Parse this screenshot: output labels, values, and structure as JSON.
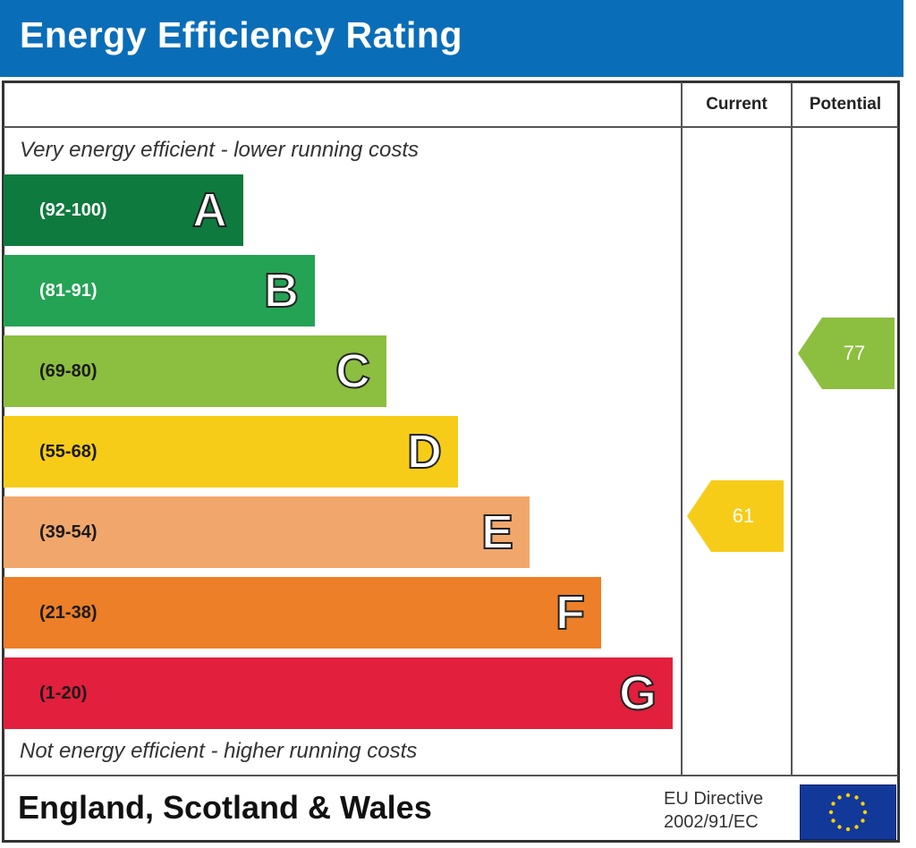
{
  "header": {
    "title": "Energy Efficiency Rating"
  },
  "columns": {
    "current": "Current",
    "potential": "Potential"
  },
  "captions": {
    "top": "Very energy efficient - lower running costs",
    "bottom": "Not energy efficient - higher running costs"
  },
  "footer": {
    "region": "England, Scotland & Wales",
    "directive_line1": "EU Directive",
    "directive_line2": "2002/91/EC",
    "flag_icon": "eu-flag-icon"
  },
  "chart_data": {
    "type": "bar",
    "title": "Energy Efficiency Rating",
    "categories": [
      "A",
      "B",
      "C",
      "D",
      "E",
      "F",
      "G"
    ],
    "bands": [
      {
        "letter": "A",
        "range": "(92-100)",
        "min": 92,
        "max": 100,
        "color": "#0f7a3e",
        "range_color": "#ffffff"
      },
      {
        "letter": "B",
        "range": "(81-91)",
        "min": 81,
        "max": 91,
        "color": "#24a354",
        "range_color": "#ffffff"
      },
      {
        "letter": "C",
        "range": "(69-80)",
        "min": 69,
        "max": 80,
        "color": "#8cbe3f",
        "range_color": "#1a1a1a"
      },
      {
        "letter": "D",
        "range": "(55-68)",
        "min": 55,
        "max": 68,
        "color": "#f6cc18",
        "range_color": "#1a1a1a"
      },
      {
        "letter": "E",
        "range": "(39-54)",
        "min": 39,
        "max": 54,
        "color": "#f1a76b",
        "range_color": "#1a1a1a"
      },
      {
        "letter": "F",
        "range": "(21-38)",
        "min": 21,
        "max": 38,
        "color": "#ec7f27",
        "range_color": "#1a1a1a"
      },
      {
        "letter": "G",
        "range": "(1-20)",
        "min": 1,
        "max": 20,
        "color": "#e21f3c",
        "range_color": "#1a1a1a"
      }
    ],
    "current": {
      "value": 61,
      "band": "D",
      "color": "#f6cc18"
    },
    "potential": {
      "value": 77,
      "band": "C",
      "color": "#8cbe3f"
    }
  }
}
